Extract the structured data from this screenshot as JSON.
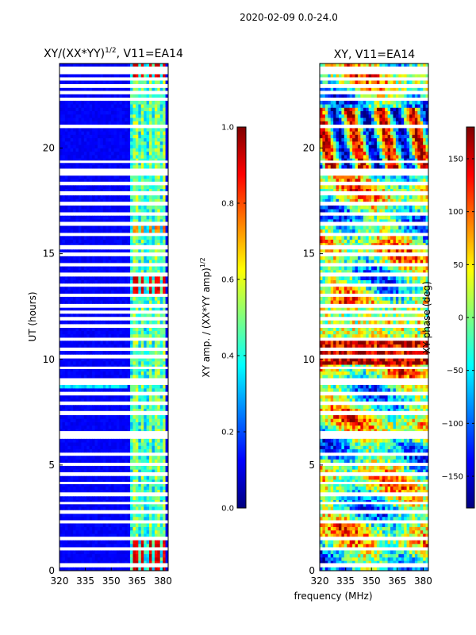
{
  "suptitle": "2020-02-09 0.0-24.0",
  "colors": {
    "jet": [
      "#00007f",
      "#0000ff",
      "#007fff",
      "#00ffff",
      "#7fff7f",
      "#ffff00",
      "#ff7f00",
      "#ff0000",
      "#7f0000"
    ],
    "background": "#ffffff",
    "gap": "#ffffff"
  },
  "chart_data": [
    {
      "id": "amp",
      "type": "heatmap",
      "title_text": "XY/(XX*YY)",
      "title_sup": "1/2",
      "title_rest": ", V11=EA14",
      "ylabel": "UT (hours)",
      "xlabel": "",
      "x_ticks": [
        320,
        335,
        350,
        365,
        380
      ],
      "x_tick_labels": [
        "320",
        "335",
        "350",
        "365",
        "380"
      ],
      "xlim": [
        320,
        383
      ],
      "y_ticks": [
        0,
        5,
        10,
        15,
        20
      ],
      "y_tick_labels": [
        "0",
        "5",
        "10",
        "15",
        "20"
      ],
      "ylim": [
        0,
        24
      ],
      "colorbar": {
        "label_text": "XY amp. / (XX*YY amp)",
        "label_sup": "1/2",
        "range": [
          0.0,
          1.0
        ],
        "ticks": [
          0.0,
          0.2,
          0.4,
          0.6,
          0.8,
          1.0
        ],
        "tick_labels": [
          "0.0",
          "0.2",
          "0.4",
          "0.6",
          "0.8",
          "1.0"
        ]
      }
    },
    {
      "id": "phase",
      "type": "heatmap",
      "title_text": "XY, V11=EA14",
      "ylabel": "",
      "xlabel": "frequency (MHz)",
      "x_ticks": [
        320,
        335,
        350,
        365,
        380
      ],
      "x_tick_labels": [
        "320",
        "335",
        "350",
        "365",
        "380"
      ],
      "xlim": [
        320,
        383
      ],
      "y_ticks": [
        0,
        5,
        10,
        15,
        20
      ],
      "y_tick_labels": [
        "0",
        "5",
        "10",
        "15",
        "20"
      ],
      "ylim": [
        0,
        24
      ],
      "colorbar": {
        "label_text": "XY phase (deg)",
        "range": [
          -180,
          180
        ],
        "ticks": [
          -150,
          -100,
          -50,
          0,
          50,
          100,
          150
        ],
        "tick_labels": [
          "−150",
          "−100",
          "−50",
          "0",
          "50",
          "100",
          "150"
        ]
      }
    }
  ],
  "gap_hours": [
    0.3,
    1.05,
    1.55,
    2.3,
    2.75,
    3.2,
    3.65,
    4.15,
    4.6,
    5.05,
    5.5,
    6.35,
    6.55,
    7.5,
    7.95,
    8.35,
    8.85,
    9.05,
    9.6,
    10.1,
    10.5,
    10.95,
    11.55,
    11.95,
    12.25,
    12.5,
    13.05,
    13.5,
    14.05,
    14.5,
    15.0,
    15.35,
    15.9,
    16.45,
    16.9,
    17.4,
    17.9,
    18.35,
    18.75,
    18.95,
    19.35,
    21.0,
    22.3,
    22.6,
    22.9,
    23.25,
    23.55,
    23.8
  ]
}
